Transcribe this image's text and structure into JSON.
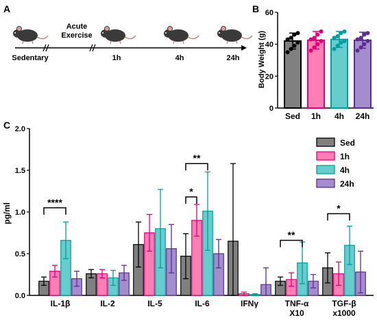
{
  "panel_a": {
    "letter": "A",
    "timeline": [
      {
        "label": "Sedentary"
      },
      {
        "label": "Acute\nExercise"
      },
      {
        "label": "1h"
      },
      {
        "label": "4h"
      },
      {
        "label": "24h"
      }
    ]
  },
  "panel_b": {
    "letter": "B",
    "chart_data": {
      "type": "bar",
      "title": "",
      "xlabel": "",
      "ylabel": "Body Weight (g)",
      "ylim": [
        0,
        60
      ],
      "yticks": [
        0,
        20,
        40,
        60
      ],
      "categories": [
        "Sed",
        "1h",
        "4h",
        "24h"
      ],
      "values": [
        42,
        42.5,
        43,
        42.5
      ],
      "errors": [
        5,
        5.5,
        5,
        5
      ],
      "colors": [
        "#808080",
        "#ff7fb4",
        "#66cccc",
        "#a38dcc"
      ],
      "edge_colors": [
        "#000000",
        "#e0007a",
        "#009e9e",
        "#5b2d8f"
      ],
      "points": [
        [
          35,
          37,
          39,
          41,
          43,
          44,
          46,
          47
        ],
        [
          36,
          38,
          40,
          42,
          43,
          44,
          46,
          48
        ],
        [
          37,
          39,
          41,
          42,
          44,
          45,
          47,
          48
        ],
        [
          36,
          38,
          40,
          42,
          43,
          44,
          46,
          47
        ]
      ]
    }
  },
  "panel_c": {
    "letter": "C",
    "chart_data": {
      "type": "bar",
      "title": "",
      "xlabel": "",
      "ylabel": "pg/ml",
      "ylim": [
        0,
        2.0
      ],
      "yticks": [
        "0.0",
        "0.5",
        "1.0",
        "1.5",
        "2.0"
      ],
      "categories": [
        "IL-1β",
        "IL-2",
        "IL-5",
        "IL-6",
        "IFNγ",
        "TNF-α\nX10",
        "TGF-β\nx1000"
      ],
      "legend_position": "top-right",
      "series": [
        {
          "name": "Sed",
          "color": "#808080",
          "edge": "#000000",
          "values": [
            0.17,
            0.26,
            0.61,
            0.47,
            0.65,
            0.17,
            0.33
          ],
          "errors": [
            0.05,
            0.05,
            0.27,
            0.27,
            0.93,
            0.05,
            0.18
          ]
        },
        {
          "name": "1h",
          "color": "#ff7fb4",
          "edge": "#e0007a",
          "values": [
            0.29,
            0.26,
            0.75,
            0.9,
            0.02,
            0.19,
            0.26
          ],
          "errors": [
            0.07,
            0.05,
            0.22,
            0.19,
            0.02,
            0.08,
            0.14
          ]
        },
        {
          "name": "4h",
          "color": "#66cccc",
          "edge": "#009e9e",
          "values": [
            0.66,
            0.21,
            0.8,
            1.01,
            0.01,
            0.39,
            0.6
          ],
          "errors": [
            0.22,
            0.09,
            0.47,
            0.47,
            0.01,
            0.25,
            0.23
          ]
        },
        {
          "name": "24h",
          "color": "#a38dcc",
          "edge": "#5b2d8f",
          "values": [
            0.2,
            0.27,
            0.56,
            0.5,
            0.13,
            0.17,
            0.28
          ],
          "errors": [
            0.09,
            0.09,
            0.29,
            0.17,
            0.2,
            0.08,
            0.25
          ]
        }
      ],
      "significance": [
        {
          "group": 0,
          "from": 0,
          "to": 2,
          "y": 1.05,
          "label": "****"
        },
        {
          "group": 3,
          "from": 0,
          "to": 1,
          "y": 1.18,
          "label": "*"
        },
        {
          "group": 3,
          "from": 0,
          "to": 2,
          "y": 1.58,
          "label": "**"
        },
        {
          "group": 5,
          "from": 0,
          "to": 2,
          "y": 0.66,
          "label": "**"
        },
        {
          "group": 6,
          "from": 0,
          "to": 2,
          "y": 0.98,
          "label": "*"
        }
      ]
    }
  }
}
